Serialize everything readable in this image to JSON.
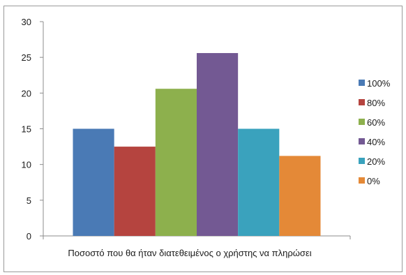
{
  "chart_data": {
    "type": "bar",
    "categories": [
      "Ποσοστό που θα ήταν διατεθειμένος ο χρήστης να πληρώσει"
    ],
    "xlabel": "Ποσοστό που θα ήταν διατεθειμένος ο χρήστης να πληρώσει",
    "ylabel": "",
    "ylim": [
      0,
      30
    ],
    "yticks": [
      "0",
      "5",
      "10",
      "15",
      "20",
      "25",
      "30"
    ],
    "grid": false,
    "legend_position": "right",
    "series": [
      {
        "name": "100%",
        "values": [
          15.0
        ],
        "color": "#4a7ab5"
      },
      {
        "name": "80%",
        "values": [
          12.5
        ],
        "color": "#b5443f"
      },
      {
        "name": "60%",
        "values": [
          20.6
        ],
        "color": "#8db04d"
      },
      {
        "name": "40%",
        "values": [
          25.6
        ],
        "color": "#735993"
      },
      {
        "name": "20%",
        "values": [
          15.0
        ],
        "color": "#3aa2bd"
      },
      {
        "name": "0%",
        "values": [
          11.2
        ],
        "color": "#e48937"
      }
    ]
  }
}
